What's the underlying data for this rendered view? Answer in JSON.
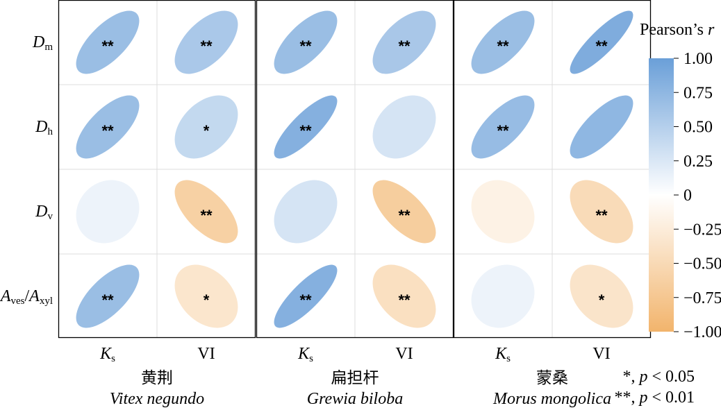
{
  "chart_data": {
    "type": "correlation-ellipse-matrix",
    "rows": [
      {
        "main": "D",
        "sub": "m"
      },
      {
        "main": "D",
        "sub": "h"
      },
      {
        "main": "D",
        "sub": "v"
      },
      {
        "main": "A",
        "sub": "ves",
        "main2": "A",
        "sub2": "xyl"
      }
    ],
    "columns": [
      {
        "main": "K",
        "sub": "s",
        "italic": true
      },
      {
        "main": "VI",
        "sub": "",
        "italic": false
      }
    ],
    "panels": [
      {
        "species_zh": "黄荆",
        "species_lat": "Vitex negundo",
        "cells": [
          [
            {
              "r": 0.68,
              "sig": "**"
            },
            {
              "r": 0.57,
              "sig": "**"
            }
          ],
          [
            {
              "r": 0.68,
              "sig": "**"
            },
            {
              "r": 0.4,
              "sig": "*"
            }
          ],
          [
            {
              "r": 0.12,
              "sig": ""
            },
            {
              "r": -0.62,
              "sig": "**"
            }
          ],
          [
            {
              "r": 0.68,
              "sig": "**"
            },
            {
              "r": -0.34,
              "sig": "*"
            }
          ]
        ]
      },
      {
        "species_zh": "扁担杆",
        "species_lat": "Grewia biloba",
        "cells": [
          [
            {
              "r": 0.68,
              "sig": "**"
            },
            {
              "r": 0.58,
              "sig": "**"
            }
          ],
          [
            {
              "r": 0.82,
              "sig": "**"
            },
            {
              "r": 0.28,
              "sig": ""
            }
          ],
          [
            {
              "r": 0.28,
              "sig": ""
            },
            {
              "r": -0.66,
              "sig": "**"
            }
          ],
          [
            {
              "r": 0.82,
              "sig": "**"
            },
            {
              "r": -0.42,
              "sig": "**"
            }
          ]
        ]
      },
      {
        "species_zh": "蒙桑",
        "species_lat": "Morus mongolica",
        "cells": [
          [
            {
              "r": 0.68,
              "sig": "**"
            },
            {
              "r": 0.86,
              "sig": "**"
            }
          ],
          [
            {
              "r": 0.7,
              "sig": "**"
            },
            {
              "r": 0.75,
              "sig": ""
            }
          ],
          [
            {
              "r": -0.18,
              "sig": ""
            },
            {
              "r": -0.48,
              "sig": "**"
            }
          ],
          [
            {
              "r": 0.12,
              "sig": ""
            },
            {
              "r": -0.36,
              "sig": "*"
            }
          ]
        ]
      }
    ],
    "legend": {
      "title_main": "Pearson’s ",
      "title_var": "r",
      "min": -1.0,
      "max": 1.0,
      "ticks": [
        "1.00",
        "0.75",
        "0.50",
        "0.25",
        "0",
        "−0.25",
        "−0.50",
        "−0.75",
        "−1.00"
      ],
      "tick_values": [
        1.0,
        0.75,
        0.5,
        0.25,
        0,
        -0.25,
        -0.5,
        -0.75,
        -1.0
      ],
      "colors": {
        "positive": "#6a9fd8",
        "zero": "#ffffff",
        "negative": "#f2b46c"
      }
    },
    "significance_note": [
      {
        "mark": "*",
        "sep": ", ",
        "var": "p",
        "rel": " < 0.05"
      },
      {
        "mark": "**",
        "sep": ", ",
        "var": "p",
        "rel": " < 0.01"
      }
    ]
  }
}
